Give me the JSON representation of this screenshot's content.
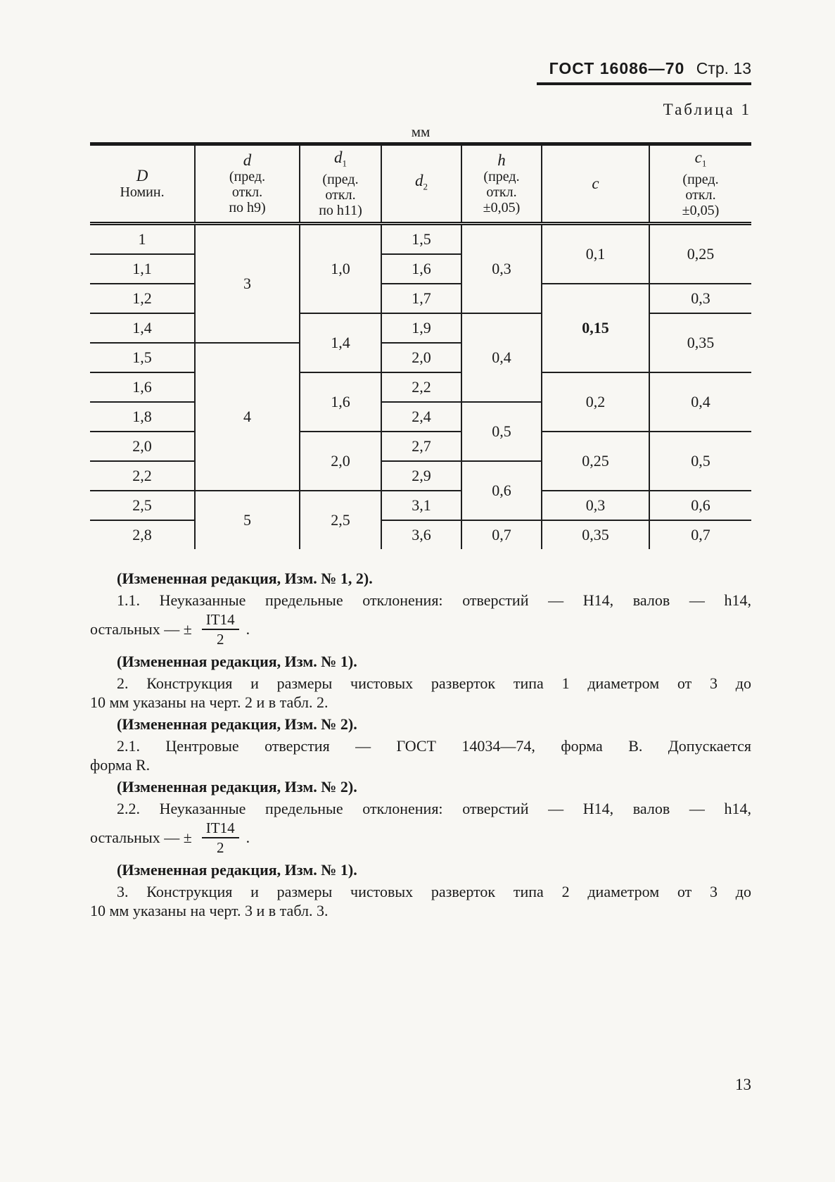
{
  "header": {
    "doc_ref": "ГОСТ 16086—70",
    "page_ref": "Стр. 13"
  },
  "table": {
    "caption": "Таблица 1",
    "units": "мм",
    "columns": [
      {
        "id": "D",
        "sym": "D",
        "sub": "",
        "lines": [
          "Номин."
        ]
      },
      {
        "id": "d",
        "sym": "d",
        "sub": "",
        "lines": [
          "(пред.",
          "откл.",
          "по h9)"
        ]
      },
      {
        "id": "d1",
        "sym": "d",
        "sub": "1",
        "lines": [
          "(пред.",
          "откл.",
          "по h11)"
        ]
      },
      {
        "id": "d2",
        "sym": "d",
        "sub": "2",
        "lines": []
      },
      {
        "id": "h",
        "sym": "h",
        "sub": "",
        "lines": [
          "(пред.",
          "откл.",
          "±0,05)"
        ]
      },
      {
        "id": "c",
        "sym": "c",
        "sub": "",
        "lines": []
      },
      {
        "id": "c1",
        "sym": "c",
        "sub": "1",
        "lines": [
          "(пред.",
          "откл.",
          "±0,05)"
        ]
      }
    ],
    "body": [
      [
        {
          "c": "D",
          "t": "1"
        },
        {
          "c": "d",
          "t": "3",
          "rs": 4
        },
        {
          "c": "d1",
          "t": "1,0",
          "rs": 3
        },
        {
          "c": "d2",
          "t": "1,5"
        },
        {
          "c": "h",
          "t": "0,3",
          "rs": 3
        },
        {
          "c": "c",
          "t": "0,1",
          "rs": 2
        },
        {
          "c": "c1",
          "t": "0,25",
          "rs": 2
        }
      ],
      [
        {
          "c": "D",
          "t": "1,1"
        },
        {
          "c": "d2",
          "t": "1,6"
        }
      ],
      [
        {
          "c": "D",
          "t": "1,2"
        },
        {
          "c": "d2",
          "t": "1,7"
        },
        {
          "c": "c",
          "t": "0,15",
          "rs": 3,
          "bold": true
        },
        {
          "c": "c1",
          "t": "0,3"
        }
      ],
      [
        {
          "c": "D",
          "t": "1,4"
        },
        {
          "c": "d1",
          "t": "1,4",
          "rs": 2
        },
        {
          "c": "d2",
          "t": "1,9"
        },
        {
          "c": "h",
          "t": "0,4",
          "rs": 3
        },
        {
          "c": "c1",
          "t": "0,35",
          "rs": 2
        }
      ],
      [
        {
          "c": "D",
          "t": "1,5"
        },
        {
          "c": "d",
          "t": "4",
          "rs": 5
        },
        {
          "c": "d2",
          "t": "2,0"
        }
      ],
      [
        {
          "c": "D",
          "t": "1,6"
        },
        {
          "c": "d1",
          "t": "1,6",
          "rs": 2
        },
        {
          "c": "d2",
          "t": "2,2"
        },
        {
          "c": "c",
          "t": "0,2",
          "rs": 2
        },
        {
          "c": "c1",
          "t": "0,4",
          "rs": 2
        }
      ],
      [
        {
          "c": "D",
          "t": "1,8"
        },
        {
          "c": "d2",
          "t": "2,4"
        },
        {
          "c": "h",
          "t": "0,5",
          "rs": 2
        }
      ],
      [
        {
          "c": "D",
          "t": "2,0"
        },
        {
          "c": "d1",
          "t": "2,0",
          "rs": 2
        },
        {
          "c": "d2",
          "t": "2,7"
        },
        {
          "c": "c",
          "t": "0,25",
          "rs": 2
        },
        {
          "c": "c1",
          "t": "0,5",
          "rs": 2
        }
      ],
      [
        {
          "c": "D",
          "t": "2,2"
        },
        {
          "c": "d2",
          "t": "2,9"
        },
        {
          "c": "h",
          "t": "0,6",
          "rs": 2
        }
      ],
      [
        {
          "c": "D",
          "t": "2,5"
        },
        {
          "c": "d",
          "t": "5",
          "rs": 2
        },
        {
          "c": "d1",
          "t": "2,5",
          "rs": 2
        },
        {
          "c": "d2",
          "t": "3,1"
        },
        {
          "c": "c",
          "t": "0,3"
        },
        {
          "c": "c1",
          "t": "0,6"
        }
      ],
      [
        {
          "c": "D",
          "t": "2,8"
        },
        {
          "c": "d2",
          "t": "3,6"
        },
        {
          "c": "h",
          "t": "0,7"
        },
        {
          "c": "c",
          "t": "0,35"
        },
        {
          "c": "c1",
          "t": "0,7"
        }
      ]
    ]
  },
  "paragraphs": [
    {
      "type": "note",
      "text": "(Измененная редакция, Изм. № 1, 2)."
    },
    {
      "type": "line-justify",
      "indent": true,
      "text": "1.1. Неуказанные предельные отклонения: отверстий — H14, валов — h14,"
    },
    {
      "type": "fraction-line",
      "before": "остальных — ±",
      "num": "IT14",
      "den": "2",
      "after": "."
    },
    {
      "type": "note",
      "text": "(Измененная редакция, Изм. № 1)."
    },
    {
      "type": "line-justify",
      "indent": true,
      "text": "2. Конструкция и размеры чистовых разверток типа 1 диаметром от 3 до"
    },
    {
      "type": "line",
      "text": "10 мм указаны на черт. 2 и в табл. 2."
    },
    {
      "type": "note",
      "text": "(Измененная редакция, Изм. № 2)."
    },
    {
      "type": "line-justify",
      "indent": true,
      "text": "2.1. Центровые отверстия — ГОСТ 14034—74, форма B. Допускается"
    },
    {
      "type": "line",
      "text": "форма R."
    },
    {
      "type": "note",
      "text": "(Измененная редакция, Изм. № 2)."
    },
    {
      "type": "line-justify",
      "indent": true,
      "text": "2.2. Неуказанные предельные отклонения: отверстий — H14, валов — h14,"
    },
    {
      "type": "fraction-line",
      "before": "остальных — ±",
      "num": "IT14",
      "den": "2",
      "after": "."
    },
    {
      "type": "note",
      "text": "(Измененная редакция, Изм. № 1)."
    },
    {
      "type": "line-justify",
      "indent": true,
      "text": "3. Конструкция и размеры чистовых разверток типа 2 диаметром от 3 до"
    },
    {
      "type": "line",
      "text": "10 мм указаны на черт. 3 и в табл. 3."
    }
  ],
  "footer": {
    "page_number": "13"
  }
}
